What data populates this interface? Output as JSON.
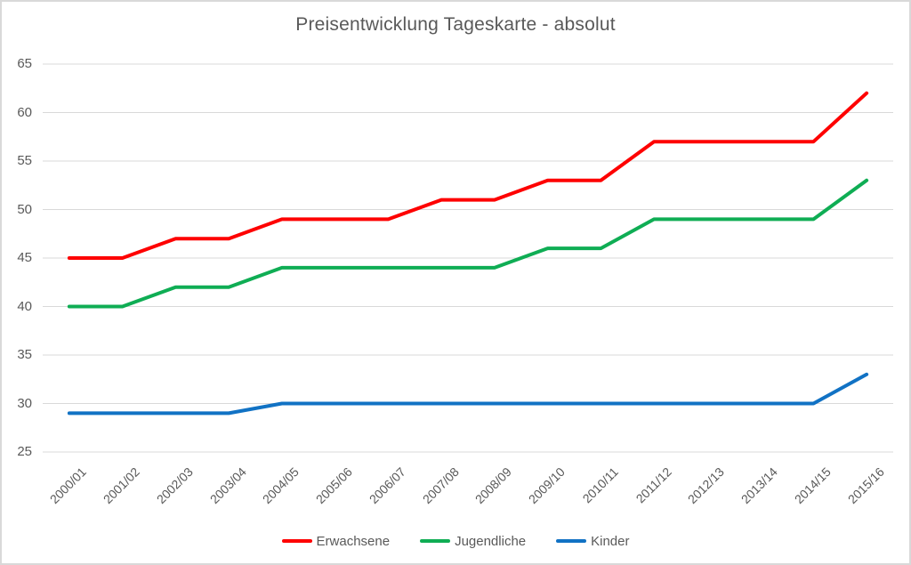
{
  "chart_data": {
    "type": "line",
    "title": "Preisentwicklung Tageskarte - absolut",
    "categories": [
      "2000/01",
      "2001/02",
      "2002/03",
      "2003/04",
      "2004/05",
      "2005/06",
      "2006/07",
      "2007/08",
      "2008/09",
      "2009/10",
      "2010/11",
      "2011/12",
      "2012/13",
      "2013/14",
      "2014/15",
      "2015/16"
    ],
    "series": [
      {
        "name": "Erwachsene",
        "color": "#FE0000",
        "values": [
          45,
          45,
          47,
          47,
          49,
          49,
          49,
          51,
          51,
          53,
          53,
          57,
          57,
          57,
          57,
          62
        ]
      },
      {
        "name": "Jugendliche",
        "color": "#0FAD54",
        "values": [
          40,
          40,
          42,
          42,
          44,
          44,
          44,
          44,
          44,
          46,
          46,
          49,
          49,
          49,
          49,
          53
        ]
      },
      {
        "name": "Kinder",
        "color": "#1172C4",
        "values": [
          29,
          29,
          29,
          29,
          30,
          30,
          30,
          30,
          30,
          30,
          30,
          30,
          30,
          30,
          30,
          33
        ]
      }
    ],
    "xlabel": "",
    "ylabel": "",
    "ylim": [
      25,
      65
    ],
    "yticks": [
      65,
      60,
      55,
      50,
      45,
      40,
      35,
      30,
      25
    ],
    "grid": "horizontal-only",
    "gridline_color": "#D9D9D9",
    "text_color": "#595959",
    "legend_position": "bottom",
    "line_width": 4
  }
}
